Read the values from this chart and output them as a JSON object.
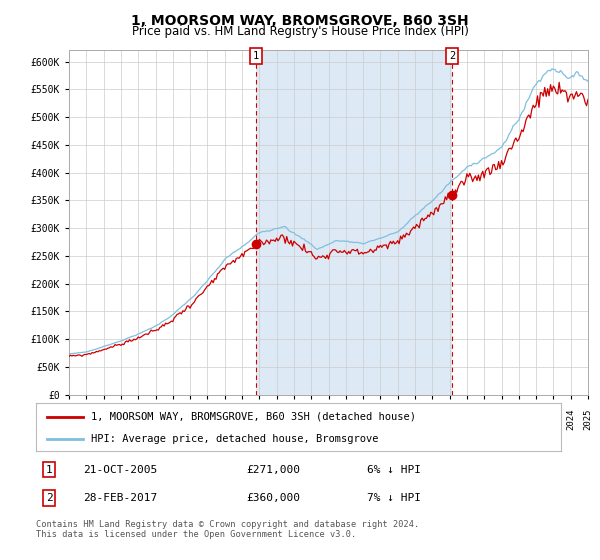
{
  "title": "1, MOORSOM WAY, BROMSGROVE, B60 3SH",
  "subtitle": "Price paid vs. HM Land Registry's House Price Index (HPI)",
  "title_fontsize": 10,
  "subtitle_fontsize": 8.5,
  "hpi_color": "#7fbfdf",
  "price_color": "#cc0000",
  "marker_color": "#cc0000",
  "bg_color": "#ffffff",
  "plot_bg_color": "#ffffff",
  "shade_color": "#ddeaf5",
  "grid_color": "#cccccc",
  "yticks": [
    0,
    50000,
    100000,
    150000,
    200000,
    250000,
    300000,
    350000,
    400000,
    450000,
    500000,
    550000,
    600000
  ],
  "ytick_labels": [
    "£0",
    "£50K",
    "£100K",
    "£150K",
    "£200K",
    "£250K",
    "£300K",
    "£350K",
    "£400K",
    "£450K",
    "£500K",
    "£550K",
    "£600K"
  ],
  "year_start": 1995,
  "year_end": 2025,
  "transaction1_date": 2005.8,
  "transaction1_price": 271000,
  "transaction1_label": "1",
  "transaction2_date": 2017.15,
  "transaction2_price": 360000,
  "transaction2_label": "2",
  "legend_line1": "1, MOORSOM WAY, BROMSGROVE, B60 3SH (detached house)",
  "legend_line2": "HPI: Average price, detached house, Bromsgrove",
  "annotation1_date": "21-OCT-2005",
  "annotation1_price": "£271,000",
  "annotation1_hpi": "6% ↓ HPI",
  "annotation2_date": "28-FEB-2017",
  "annotation2_price": "£360,000",
  "annotation2_hpi": "7% ↓ HPI",
  "footer": "Contains HM Land Registry data © Crown copyright and database right 2024.\nThis data is licensed under the Open Government Licence v3.0."
}
